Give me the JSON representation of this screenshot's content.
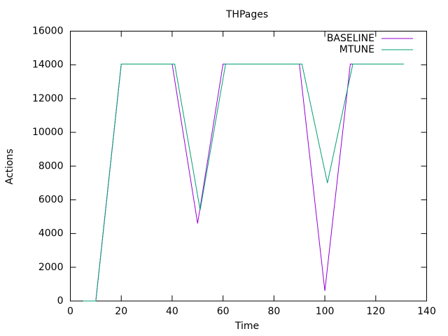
{
  "chart_data": {
    "type": "line",
    "title": "THPages",
    "x_label": "Time",
    "y_label": "Actions",
    "series": [
      {
        "name": "BASELINE",
        "color": "#9400d3",
        "x": [
          5,
          10,
          20,
          40,
          50,
          60,
          90,
          100,
          110,
          131
        ],
        "values": [
          0,
          0,
          14050,
          14050,
          4600,
          14050,
          14050,
          600,
          14050,
          14050
        ]
      },
      {
        "name": "MTUNE",
        "color": "#009e73",
        "x": [
          5,
          10,
          20,
          41,
          51,
          61,
          91,
          101,
          111,
          131
        ],
        "values": [
          0,
          0,
          14050,
          14050,
          5400,
          14050,
          14050,
          7000,
          14050,
          14050
        ]
      }
    ],
    "xlim": [
      0,
      140
    ],
    "xticks": [
      0,
      20,
      40,
      60,
      80,
      100,
      120,
      140
    ],
    "ylim": [
      0,
      16000
    ],
    "yticks": [
      0,
      2000,
      4000,
      6000,
      8000,
      10000,
      12000,
      14000,
      16000
    ],
    "grid": false,
    "legend": "top-right"
  }
}
